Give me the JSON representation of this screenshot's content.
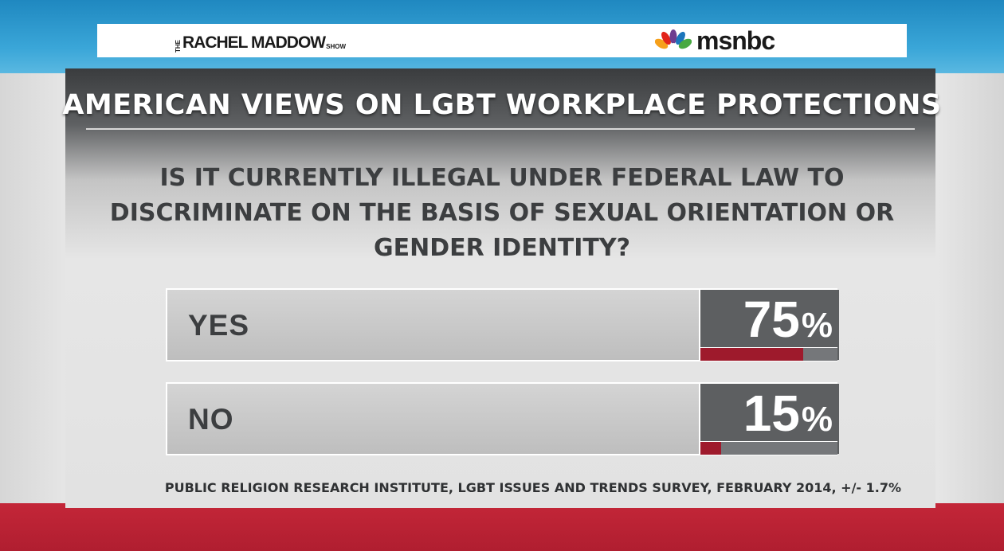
{
  "header": {
    "show_logo_small": "THE",
    "show_logo_main": "RACHEL MADDOW",
    "show_logo_suffix": "SHOW",
    "network_logo": "msnbc",
    "network_icon": "nbc-peacock-icon"
  },
  "chart_data": {
    "type": "bar",
    "title": "AMERICAN VIEWS ON LGBT WORKPLACE PROTECTIONS",
    "question": "IS IT CURRENTLY ILLEGAL UNDER FEDERAL LAW TO DISCRIMINATE ON THE BASIS OF SEXUAL ORIENTATION OR GENDER IDENTITY?",
    "categories": [
      "YES",
      "NO"
    ],
    "values": [
      75,
      15
    ],
    "value_labels": [
      "75",
      "15"
    ],
    "unit": "%",
    "ylim": [
      0,
      100
    ],
    "source": "PUBLIC RELIGION RESEARCH INSTITUTE, LGBT ISSUES AND TRENDS SURVEY, FEBRUARY 2014, +/- 1.7%"
  },
  "colors": {
    "bar_fill": "#9e1a2c",
    "value_box": "#5d5f61",
    "floor_red": "#c8283a",
    "sky_blue": "#2a8fc4"
  }
}
